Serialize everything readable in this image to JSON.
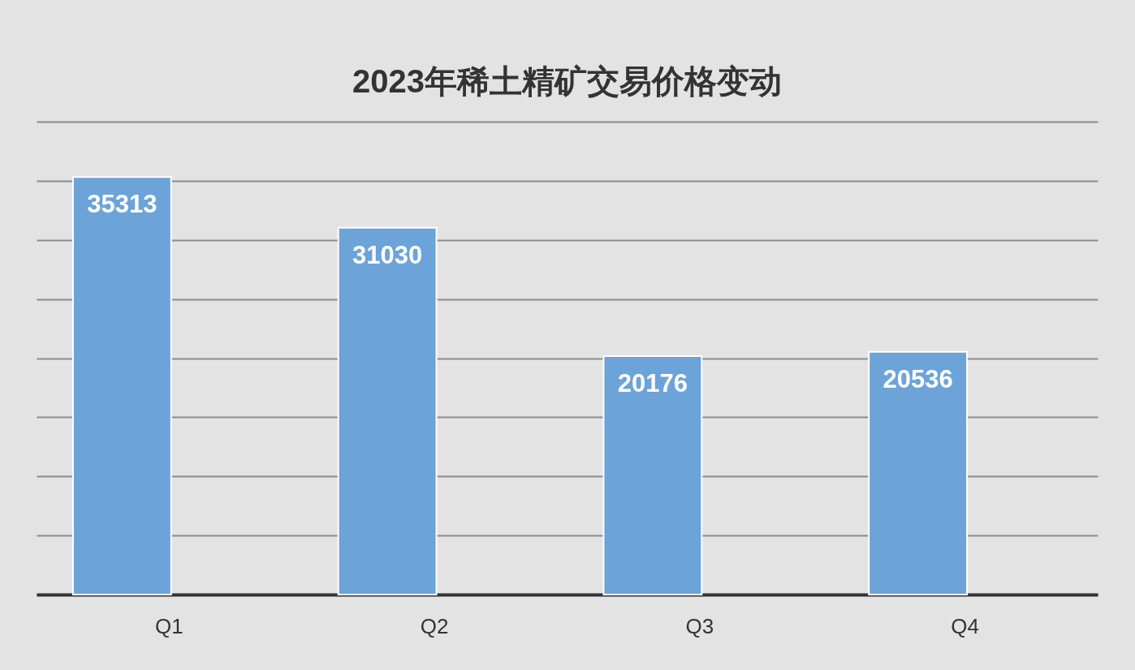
{
  "chart_data": {
    "type": "bar",
    "title": "2023年稀土精矿交易价格变动",
    "categories": [
      "Q1",
      "Q2",
      "Q3",
      "Q4"
    ],
    "values": [
      35313,
      31030,
      20176,
      20536
    ],
    "color": "#6ca3d9",
    "ylim": [
      0,
      40000
    ],
    "yticks": [
      {
        "value": 0,
        "label": null
      },
      {
        "value": 5000,
        "label": null
      },
      {
        "value": 10000,
        "label": null
      },
      {
        "value": 15000,
        "label": null
      },
      {
        "value": 20000,
        "label": null
      },
      {
        "value": 25000,
        "label": null
      },
      {
        "value": 30000,
        "label": null
      },
      {
        "value": 35000,
        "label": null
      },
      {
        "value": 40000,
        "label": null
      }
    ],
    "grid": "y",
    "tick_labels": "x",
    "data_labels": true
  }
}
